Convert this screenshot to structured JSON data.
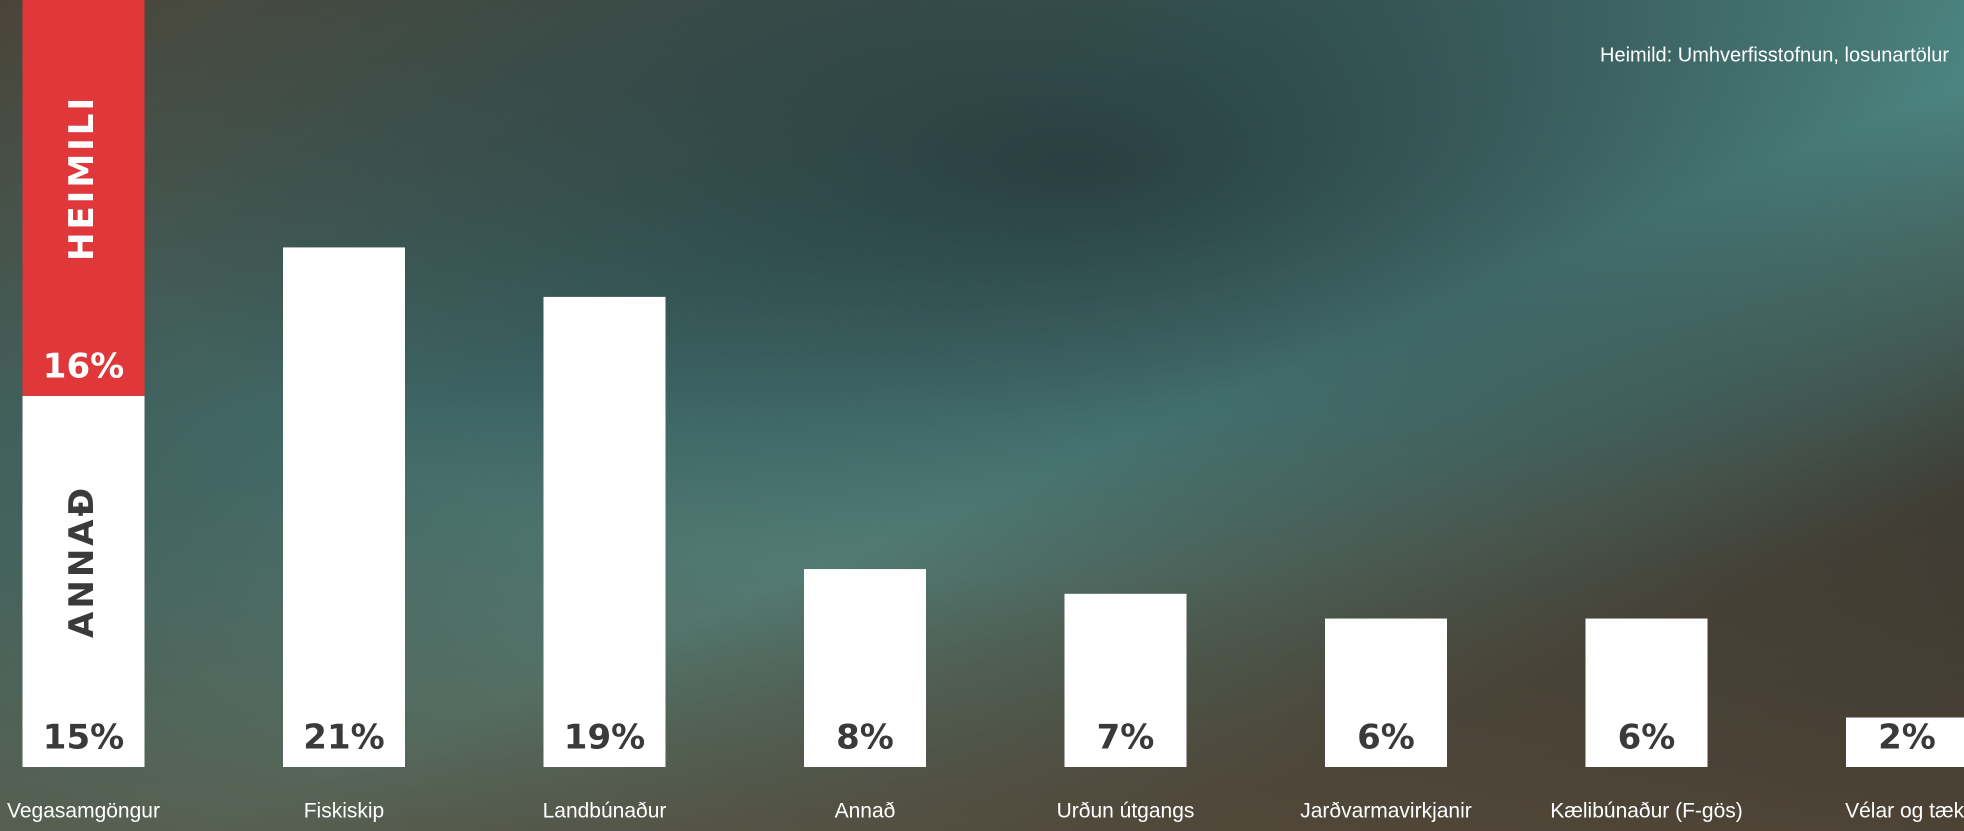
{
  "chart_data": {
    "type": "bar",
    "source": "Heimild: Umhverfisstofnun, losunartölur",
    "categories": [
      "Vegasamgöngur",
      "Fiskiskip",
      "Landbúnaður",
      "Annað",
      "Urðun útgangs",
      "Jarðvarmavirkjanir",
      "Kælibúnaður (F-gös)",
      "Vélar og tæki"
    ],
    "series": [
      {
        "name": "ANNAÐ",
        "color": "#ffffff",
        "values": [
          15,
          21,
          19,
          8,
          7,
          6,
          6,
          2
        ],
        "value_labels": [
          "15%",
          "21%",
          "19%",
          "8%",
          "7%",
          "6%",
          "6%",
          "2%"
        ]
      },
      {
        "name": "HEIMILI",
        "color": "#e0383a",
        "values": [
          16,
          null,
          null,
          null,
          null,
          null,
          null,
          null
        ],
        "value_labels": [
          "16%",
          null,
          null,
          null,
          null,
          null,
          null,
          null
        ]
      }
    ],
    "stacked": true,
    "ylim": [
      0,
      31
    ]
  }
}
